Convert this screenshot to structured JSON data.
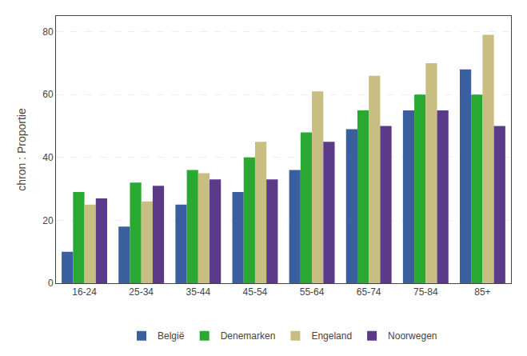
{
  "chart_data": {
    "type": "bar",
    "categories": [
      "16-24",
      "25-34",
      "35-44",
      "45-54",
      "55-64",
      "65-74",
      "75-84",
      "85+"
    ],
    "series": [
      {
        "name": "België",
        "color": "#3a5fa0",
        "values": [
          10,
          18,
          25,
          29,
          36,
          49,
          55,
          68
        ]
      },
      {
        "name": "Denemarken",
        "color": "#29a832",
        "values": [
          29,
          32,
          36,
          40,
          48,
          55,
          60,
          60
        ]
      },
      {
        "name": "Engeland",
        "color": "#c8be82",
        "values": [
          25,
          26,
          35,
          45,
          61,
          66,
          70,
          79
        ]
      },
      {
        "name": "Noorwegen",
        "color": "#5b3a8a",
        "values": [
          27,
          31,
          33,
          33,
          45,
          50,
          55,
          50
        ]
      }
    ],
    "ylabel": "chron : Proportie",
    "ylim": [
      0,
      85
    ],
    "yticks": [
      0,
      20,
      40,
      60,
      80
    ],
    "grid": true,
    "legend": "bottom"
  }
}
